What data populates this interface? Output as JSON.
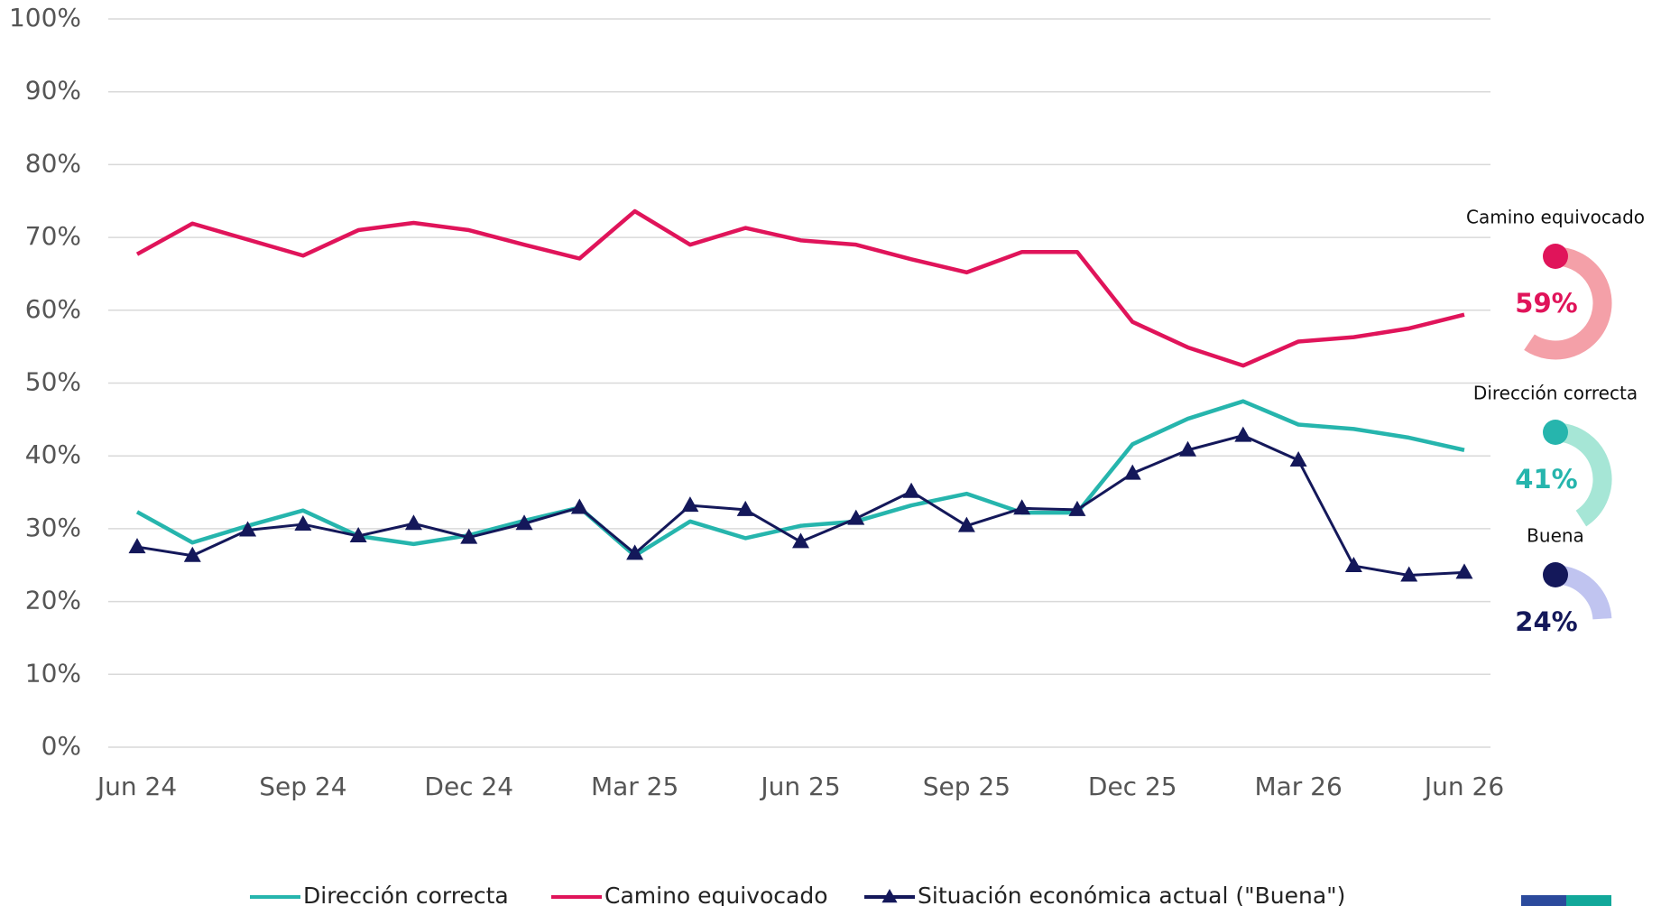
{
  "chart_data": {
    "type": "line",
    "categories": [
      "Jun 24",
      null,
      null,
      "Sep 24",
      null,
      null,
      "Dec 24",
      null,
      null,
      "Mar 25",
      null,
      null,
      "Jun 25",
      null,
      null,
      "Sep 25",
      null,
      null,
      "Dec 25",
      null,
      null,
      "Mar 26",
      null,
      null,
      "Jun 26"
    ],
    "ylim": [
      0,
      100
    ],
    "yticks": [
      {
        "value": 0,
        "label": "0%"
      },
      {
        "value": 10,
        "label": "10%"
      },
      {
        "value": 20,
        "label": "20%"
      },
      {
        "value": 30,
        "label": "30%"
      },
      {
        "value": 40,
        "label": "40%"
      },
      {
        "value": 50,
        "label": "50%"
      },
      {
        "value": 60,
        "label": "60%"
      },
      {
        "value": 70,
        "label": "70%"
      },
      {
        "value": 80,
        "label": "80%"
      },
      {
        "value": 90,
        "label": "90%"
      },
      {
        "value": 100,
        "label": "100%"
      }
    ],
    "grid": true,
    "legend": "bottom",
    "series": [
      {
        "name": "Dirección correcta",
        "callout_label": "Dirección correcta",
        "color": "#26b5ad",
        "callout_color": "#a6e6d6",
        "values": [
          32.3,
          28.1,
          30.4,
          32.5,
          29.0,
          27.9,
          29.1,
          31.1,
          32.9,
          26.3,
          31.0,
          28.7,
          30.4,
          31.0,
          33.2,
          34.8,
          32.2,
          32.2,
          41.6,
          45.1,
          47.5,
          44.3,
          43.7,
          42.5,
          40.8
        ],
        "value_labels": [
          null,
          null,
          null,
          null,
          null,
          null,
          null,
          null,
          null,
          null,
          null,
          null,
          null,
          null,
          null,
          null,
          null,
          null,
          null,
          null,
          null,
          null,
          null,
          null,
          "41%"
        ]
      },
      {
        "name": "Camino equivocado",
        "callout_label": "Camino equivocado",
        "color": "#e0145a",
        "callout_color": "#f4a0a8",
        "values": [
          67.7,
          71.9,
          69.7,
          67.5,
          71.0,
          72.0,
          71.0,
          69.0,
          67.1,
          73.6,
          69.0,
          71.3,
          69.6,
          69.0,
          67.0,
          65.2,
          68.0,
          68.0,
          58.4,
          54.9,
          52.4,
          55.7,
          56.3,
          57.5,
          59.4
        ],
        "value_labels": [
          null,
          null,
          null,
          null,
          null,
          null,
          null,
          null,
          null,
          null,
          null,
          null,
          null,
          null,
          null,
          null,
          null,
          null,
          null,
          null,
          null,
          null,
          null,
          null,
          "59%"
        ]
      },
      {
        "name": "Situación económica actual (\"Buena\")",
        "callout_label": "Buena",
        "color": "#14185a",
        "callout_color": "#c0c4f0",
        "marker": "triangle",
        "values": [
          27.5,
          26.3,
          29.8,
          30.6,
          29.0,
          30.7,
          28.8,
          30.7,
          32.9,
          26.6,
          33.2,
          32.6,
          28.2,
          31.4,
          35.1,
          30.4,
          32.8,
          32.6,
          37.6,
          40.8,
          42.8,
          39.4,
          24.9,
          23.6,
          24.0
        ],
        "value_labels": [
          null,
          null,
          null,
          null,
          null,
          null,
          null,
          null,
          null,
          null,
          null,
          null,
          null,
          null,
          null,
          null,
          null,
          null,
          null,
          null,
          null,
          null,
          null,
          null,
          "24%"
        ]
      }
    ]
  }
}
